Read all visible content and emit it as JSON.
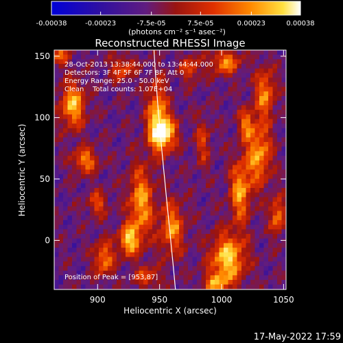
{
  "chart_data": {
    "type": "heatmap",
    "title": "Reconstructed RHESSI Image",
    "xlabel": "Heliocentric X (arcsec)",
    "ylabel": "Heliocentric Y (arcsec)",
    "xlim": [
      865,
      1052
    ],
    "ylim": [
      -40,
      155
    ],
    "x_ticks": [
      "900",
      "950",
      "1000",
      "1050"
    ],
    "x_tick_values": [
      900,
      950,
      1000,
      1050
    ],
    "y_ticks": [
      "0",
      "50",
      "100",
      "150"
    ],
    "y_tick_values": [
      0,
      50,
      100,
      150
    ],
    "colorbar": {
      "ticks": [
        "-0.00038",
        "-0.00023",
        "-7.5e-05",
        "7.5e-05",
        "0.00023",
        "0.00038"
      ],
      "tick_values": [
        -0.00038,
        -0.00023,
        -7.5e-05,
        7.5e-05,
        0.00023,
        0.00038
      ],
      "range": [
        -0.00038,
        0.00038
      ],
      "unit_label": "(photons cm⁻² s⁻¹ asec⁻²)",
      "colors": [
        "#0000d8",
        "#3010a0",
        "#601c80",
        "#9a1410",
        "#e03000",
        "#ff8a00",
        "#ffe040",
        "#ffffff"
      ]
    },
    "annotations": [
      "28-Oct-2013 13:38:44.000 to 13:44:44.000",
      "Detectors: 3F 4F 5F 6F 7F 8F, Att 0",
      "Energy Range: 25.0 - 50.0 keV",
      "Clean    Total counts: 1.07E+04"
    ],
    "peak_label": "Position of Peak = [953,87]",
    "peak": [
      953,
      87
    ],
    "limb_color": "#ffffff",
    "timestamp": "17-May-2022 17:59"
  }
}
